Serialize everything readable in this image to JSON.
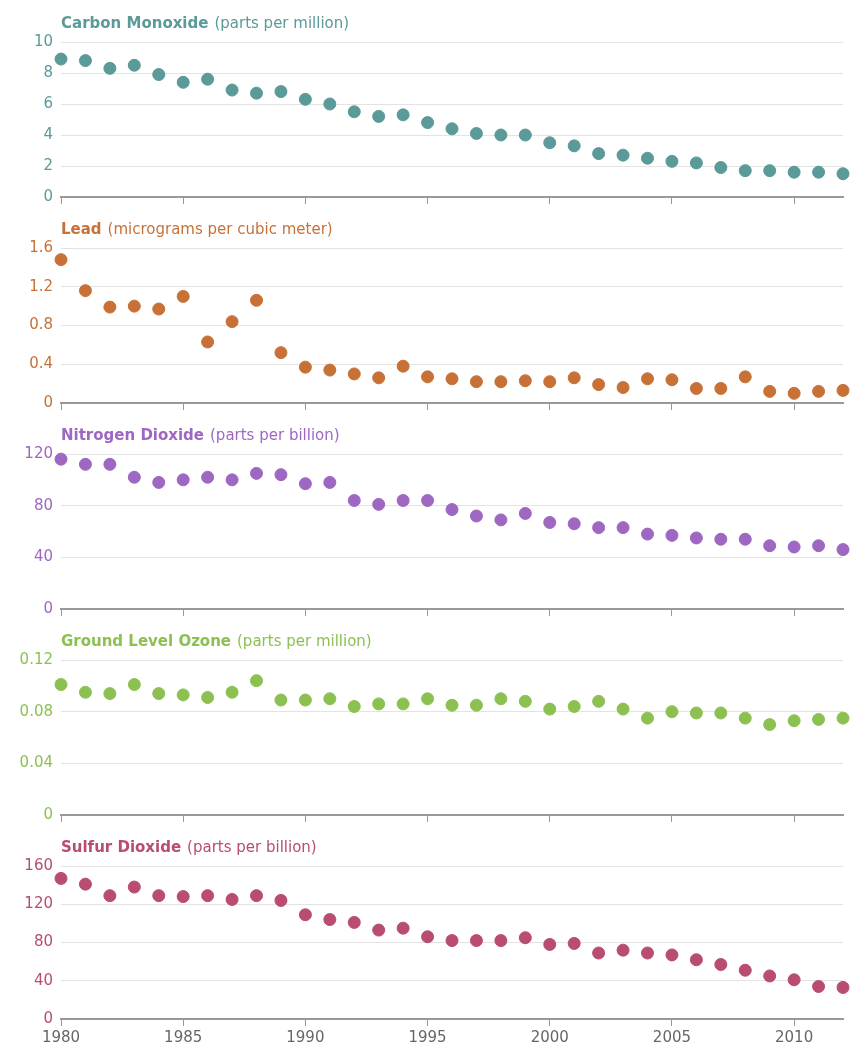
{
  "chart_data": [
    {
      "type": "scatter",
      "title": "Carbon Monoxide",
      "subtitle": "(parts per million)",
      "x": [
        1980,
        1981,
        1982,
        1983,
        1984,
        1985,
        1986,
        1987,
        1988,
        1989,
        1990,
        1991,
        1992,
        1993,
        1994,
        1995,
        1996,
        1997,
        1998,
        1999,
        2000,
        2001,
        2002,
        2003,
        2004,
        2005,
        2006,
        2007,
        2008,
        2009,
        2010,
        2011,
        2012
      ],
      "xlim": [
        1980,
        2012
      ],
      "xticks": [
        1980,
        1985,
        1990,
        1995,
        2000,
        2005,
        2010
      ],
      "ylim": [
        0,
        10
      ],
      "yticks": [
        0,
        2,
        4,
        6,
        8,
        10
      ],
      "grid": "y",
      "marker": "circle",
      "tick_labels": "y",
      "series": [
        {
          "color": "#5a9a98",
          "values": [
            8.9,
            8.8,
            8.3,
            8.5,
            7.9,
            7.4,
            7.6,
            6.9,
            6.7,
            6.8,
            6.3,
            6.0,
            5.5,
            5.2,
            5.3,
            4.8,
            4.4,
            4.1,
            4.0,
            4.0,
            3.5,
            3.3,
            2.8,
            2.7,
            2.5,
            2.3,
            2.2,
            1.9,
            1.7,
            1.7,
            1.6,
            1.6,
            1.5
          ]
        }
      ]
    },
    {
      "type": "scatter",
      "title": "Lead",
      "subtitle": "(micrograms per cubic meter)",
      "x": [
        1980,
        1981,
        1982,
        1983,
        1984,
        1985,
        1986,
        1987,
        1988,
        1989,
        1990,
        1991,
        1992,
        1993,
        1994,
        1995,
        1996,
        1997,
        1998,
        1999,
        2000,
        2001,
        2002,
        2003,
        2004,
        2005,
        2006,
        2007,
        2008,
        2009,
        2010,
        2011,
        2012
      ],
      "xlim": [
        1980,
        2012
      ],
      "xticks": [
        1980,
        1985,
        1990,
        1995,
        2000,
        2005,
        2010
      ],
      "ylim": [
        0,
        1.6
      ],
      "yticks": [
        0,
        0.4,
        0.8,
        1.2,
        1.6
      ],
      "grid": "y",
      "marker": "circle",
      "tick_labels": "y",
      "series": [
        {
          "color": "#c87137",
          "values": [
            1.48,
            1.16,
            0.99,
            1.0,
            0.97,
            1.1,
            0.63,
            0.84,
            1.06,
            0.52,
            0.37,
            0.34,
            0.3,
            0.26,
            0.38,
            0.27,
            0.25,
            0.22,
            0.22,
            0.23,
            0.22,
            0.26,
            0.19,
            0.16,
            0.25,
            0.24,
            0.15,
            0.15,
            0.27,
            0.12,
            0.1,
            0.12,
            0.13
          ]
        }
      ]
    },
    {
      "type": "scatter",
      "title": "Nitrogen Dioxide",
      "subtitle": "(parts per billion)",
      "x": [
        1980,
        1981,
        1982,
        1983,
        1984,
        1985,
        1986,
        1987,
        1988,
        1989,
        1990,
        1991,
        1992,
        1993,
        1994,
        1995,
        1996,
        1997,
        1998,
        1999,
        2000,
        2001,
        2002,
        2003,
        2004,
        2005,
        2006,
        2007,
        2008,
        2009,
        2010,
        2011,
        2012
      ],
      "xlim": [
        1980,
        2012
      ],
      "xticks": [
        1980,
        1985,
        1990,
        1995,
        2000,
        2005,
        2010
      ],
      "ylim": [
        0,
        120
      ],
      "yticks": [
        0,
        40,
        80,
        120
      ],
      "grid": "y",
      "marker": "circle",
      "tick_labels": "y",
      "series": [
        {
          "color": "#9e67c2",
          "values": [
            116,
            112,
            112,
            102,
            98,
            100,
            102,
            100,
            105,
            104,
            97,
            98,
            84,
            81,
            84,
            84,
            77,
            72,
            69,
            74,
            67,
            66,
            63,
            63,
            58,
            57,
            55,
            54,
            54,
            49,
            48,
            49,
            46
          ]
        }
      ]
    },
    {
      "type": "scatter",
      "title": "Ground Level Ozone",
      "subtitle": "(parts per million)",
      "x": [
        1980,
        1981,
        1982,
        1983,
        1984,
        1985,
        1986,
        1987,
        1988,
        1989,
        1990,
        1991,
        1992,
        1993,
        1994,
        1995,
        1996,
        1997,
        1998,
        1999,
        2000,
        2001,
        2002,
        2003,
        2004,
        2005,
        2006,
        2007,
        2008,
        2009,
        2010,
        2011,
        2012
      ],
      "xlim": [
        1980,
        2012
      ],
      "xticks": [
        1980,
        1985,
        1990,
        1995,
        2000,
        2005,
        2010
      ],
      "ylim": [
        0,
        0.12
      ],
      "yticks": [
        0,
        0.04,
        0.08,
        0.12
      ],
      "grid": "y",
      "marker": "circle",
      "tick_labels": "y",
      "series": [
        {
          "color": "#8cc152",
          "values": [
            0.101,
            0.095,
            0.094,
            0.101,
            0.094,
            0.093,
            0.091,
            0.095,
            0.104,
            0.089,
            0.089,
            0.09,
            0.084,
            0.086,
            0.086,
            0.09,
            0.085,
            0.085,
            0.09,
            0.088,
            0.082,
            0.084,
            0.088,
            0.082,
            0.075,
            0.08,
            0.079,
            0.079,
            0.075,
            0.07,
            0.073,
            0.074,
            0.075
          ]
        }
      ]
    },
    {
      "type": "scatter",
      "title": "Sulfur Dioxide",
      "subtitle": "(parts per billion)",
      "x": [
        1980,
        1981,
        1982,
        1983,
        1984,
        1985,
        1986,
        1987,
        1988,
        1989,
        1990,
        1991,
        1992,
        1993,
        1994,
        1995,
        1996,
        1997,
        1998,
        1999,
        2000,
        2001,
        2002,
        2003,
        2004,
        2005,
        2006,
        2007,
        2008,
        2009,
        2010,
        2011,
        2012
      ],
      "xlim": [
        1980,
        2012
      ],
      "xticks": [
        1980,
        1985,
        1990,
        1995,
        2000,
        2005,
        2010
      ],
      "ylim": [
        0,
        160
      ],
      "yticks": [
        0,
        40,
        80,
        120,
        160
      ],
      "grid": "y",
      "marker": "circle",
      "series": [
        {
          "color": "#b84c72",
          "values": [
            147,
            141,
            129,
            138,
            129,
            128,
            129,
            125,
            129,
            124,
            109,
            104,
            101,
            93,
            95,
            86,
            82,
            82,
            82,
            85,
            78,
            79,
            69,
            72,
            69,
            67,
            62,
            57,
            51,
            45,
            41,
            34,
            33
          ]
        }
      ]
    }
  ]
}
